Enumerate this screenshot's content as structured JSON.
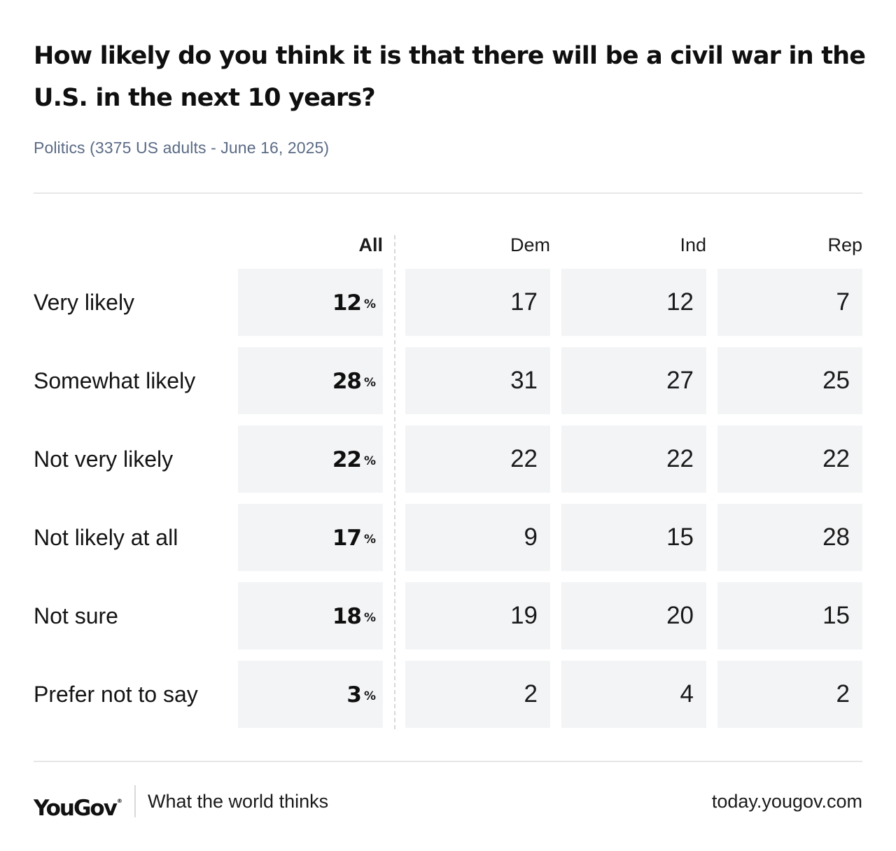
{
  "chart_data": {
    "type": "table",
    "title": "How likely do you think it is that there will be a civil war in the U.S. in the next 10 years?",
    "subtitle": "Politics (3375 US adults - June 16, 2025)",
    "columns": [
      "All",
      "Dem",
      "Ind",
      "Rep"
    ],
    "unit": "%",
    "rows": [
      {
        "label": "Very likely",
        "values": [
          12,
          17,
          12,
          7
        ]
      },
      {
        "label": "Somewhat likely",
        "values": [
          28,
          31,
          27,
          25
        ]
      },
      {
        "label": "Not very likely",
        "values": [
          22,
          22,
          22,
          22
        ]
      },
      {
        "label": "Not likely at all",
        "values": [
          17,
          9,
          15,
          28
        ]
      },
      {
        "label": "Not sure",
        "values": [
          18,
          19,
          20,
          15
        ]
      },
      {
        "label": "Prefer not to say",
        "values": [
          3,
          2,
          4,
          2
        ]
      }
    ]
  },
  "footer": {
    "logo": "YouGov",
    "logo_mark": "®",
    "tagline": "What the world thinks",
    "site": "today.yougov.com"
  },
  "colors": {
    "cell_background": "#f3f4f6",
    "subtitle": "#5b6b85",
    "rule": "#e6e6e6"
  }
}
